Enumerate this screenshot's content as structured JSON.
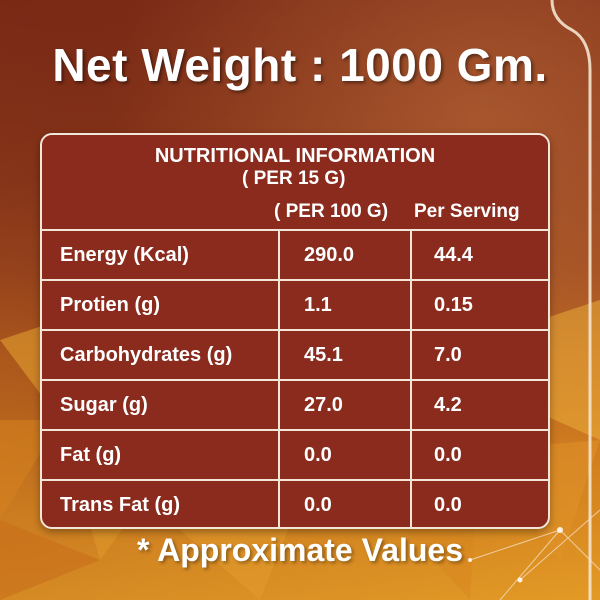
{
  "title": "Net Weight : 1000 Gm.",
  "table": {
    "heading": "NUTRITIONAL INFORMATION",
    "subheading": "( PER 15 G)",
    "col_per100": "( PER 100 G)",
    "col_serving": "Per Serving",
    "rows": [
      {
        "label": "Energy (Kcal)",
        "per100": "290.0",
        "serving": "44.4"
      },
      {
        "label": "Protien (g)",
        "per100": "1.1",
        "serving": "0.15"
      },
      {
        "label": "Carbohydrates (g)",
        "per100": "45.1",
        "serving": "7.0"
      },
      {
        "label": "Sugar (g)",
        "per100": "27.0",
        "serving": "4.2"
      },
      {
        "label": "Fat (g)",
        "per100": "0.0",
        "serving": "0.0"
      },
      {
        "label": "Trans Fat (g)",
        "per100": "0.0",
        "serving": "0.0"
      }
    ]
  },
  "footer": "* Approximate Values",
  "colors": {
    "panel": "#8a2b1d",
    "border": "#f2e6d9",
    "text": "#ffffff"
  }
}
